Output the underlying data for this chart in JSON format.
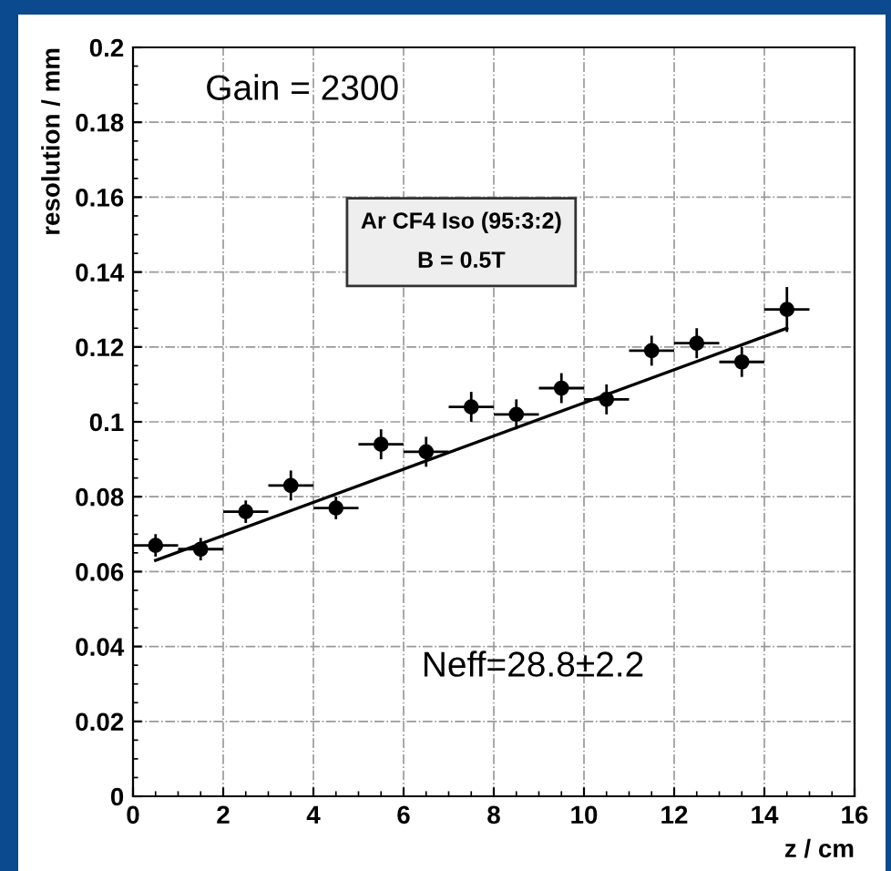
{
  "chart_data": {
    "type": "scatter",
    "xlabel": "z / cm",
    "ylabel": "resolution / mm",
    "annotations": [
      "Gain = 2300",
      "Ar CF4 Iso (95:3:2)",
      "B = 0.5T",
      "Neff=28.8±2.2"
    ],
    "series": [
      {
        "color": "#000000",
        "marker": "circle",
        "x": [
          0.5,
          1.5,
          2.5,
          3.5,
          4.5,
          5.5,
          6.5,
          7.5,
          8.5,
          9.5,
          10.5,
          11.5,
          12.5,
          13.5,
          14.5
        ],
        "values": [
          0.067,
          0.066,
          0.076,
          0.083,
          0.077,
          0.094,
          0.092,
          0.104,
          0.102,
          0.109,
          0.106,
          0.119,
          0.121,
          0.116,
          0.13
        ],
        "errors": [
          0.003,
          0.003,
          0.003,
          0.004,
          0.003,
          0.004,
          0.004,
          0.004,
          0.004,
          0.004,
          0.004,
          0.004,
          0.004,
          0.004,
          0.006
        ],
        "xerrors": [
          0.5,
          0.5,
          0.5,
          0.5,
          0.5,
          0.5,
          0.5,
          0.5,
          0.5,
          0.5,
          0.5,
          0.5,
          0.5,
          0.5,
          0.5
        ]
      },
      {
        "type": "line",
        "color": "#000000",
        "x": [
          0.5,
          14.5
        ],
        "values": [
          0.063,
          0.125
        ]
      }
    ],
    "xlim": [
      0,
      16
    ],
    "xticks": [
      0,
      2,
      4,
      6,
      8,
      10,
      12,
      14,
      16
    ],
    "ylim": [
      0,
      0.2
    ],
    "yticks": [
      0,
      0.02,
      0.04,
      0.06,
      0.08,
      0.1,
      0.12,
      0.14,
      0.16,
      0.18,
      0.2
    ],
    "grid": true,
    "line_style": "solid"
  }
}
